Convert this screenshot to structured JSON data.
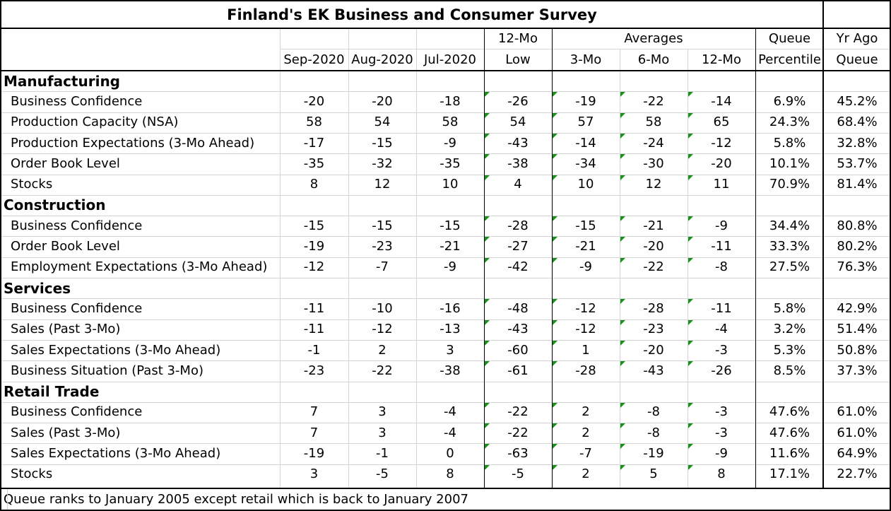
{
  "title": "Finland's EK Business and Consumer Survey",
  "headers": {
    "top": {
      "low": "12-Mo",
      "averages": "Averages",
      "percentile": "Queue",
      "yrago": "Yr Ago"
    },
    "bottom": [
      "Sep-2020",
      "Aug-2020",
      "Jul-2020",
      "Low",
      "3-Mo",
      "6-Mo",
      "12-Mo",
      "Percentile",
      "Queue"
    ]
  },
  "sections": [
    {
      "name": "Manufacturing",
      "rows": [
        {
          "label": "Business Confidence",
          "values": [
            "-20",
            "-20",
            "-18",
            "-26",
            "-19",
            "-22",
            "-14",
            "6.9%",
            "45.2%"
          ]
        },
        {
          "label": "Production Capacity (NSA)",
          "values": [
            "58",
            "54",
            "58",
            "54",
            "57",
            "58",
            "65",
            "24.3%",
            "68.4%"
          ]
        },
        {
          "label": "Production Expectations (3-Mo Ahead)",
          "values": [
            "-17",
            "-15",
            "-9",
            "-43",
            "-14",
            "-24",
            "-12",
            "5.8%",
            "32.8%"
          ]
        },
        {
          "label": "Order Book Level",
          "values": [
            "-35",
            "-32",
            "-35",
            "-38",
            "-34",
            "-30",
            "-20",
            "10.1%",
            "53.7%"
          ]
        },
        {
          "label": "Stocks",
          "values": [
            "8",
            "12",
            "10",
            "4",
            "10",
            "12",
            "11",
            "70.9%",
            "81.4%"
          ]
        }
      ]
    },
    {
      "name": "Construction",
      "rows": [
        {
          "label": "Business Confidence",
          "values": [
            "-15",
            "-15",
            "-15",
            "-28",
            "-15",
            "-21",
            "-9",
            "34.4%",
            "80.8%"
          ]
        },
        {
          "label": "Order Book Level",
          "values": [
            "-19",
            "-23",
            "-21",
            "-27",
            "-21",
            "-20",
            "-11",
            "33.3%",
            "80.2%"
          ]
        },
        {
          "label": "Employment Expectations (3-Mo Ahead)",
          "values": [
            "-12",
            "-7",
            "-9",
            "-42",
            "-9",
            "-22",
            "-8",
            "27.5%",
            "76.3%"
          ]
        }
      ]
    },
    {
      "name": "Services",
      "rows": [
        {
          "label": "Business Confidence",
          "values": [
            "-11",
            "-10",
            "-16",
            "-48",
            "-12",
            "-28",
            "-11",
            "5.8%",
            "42.9%"
          ]
        },
        {
          "label": "Sales (Past 3-Mo)",
          "values": [
            "-11",
            "-12",
            "-13",
            "-43",
            "-12",
            "-23",
            "-4",
            "3.2%",
            "51.4%"
          ]
        },
        {
          "label": "Sales Expectations (3-Mo Ahead)",
          "values": [
            "-1",
            "2",
            "3",
            "-60",
            "1",
            "-20",
            "-3",
            "5.3%",
            "50.8%"
          ]
        },
        {
          "label": "Business Situation (Past 3-Mo)",
          "values": [
            "-23",
            "-22",
            "-38",
            "-61",
            "-28",
            "-43",
            "-26",
            "8.5%",
            "37.3%"
          ]
        }
      ]
    },
    {
      "name": "Retail Trade",
      "rows": [
        {
          "label": "Business Confidence",
          "values": [
            "7",
            "3",
            "-4",
            "-22",
            "2",
            "-8",
            "-3",
            "47.6%",
            "61.0%"
          ]
        },
        {
          "label": "Sales (Past 3-Mo)",
          "values": [
            "7",
            "3",
            "-4",
            "-22",
            "2",
            "-8",
            "-3",
            "47.6%",
            "61.0%"
          ]
        },
        {
          "label": "Sales Expectations (3-Mo Ahead)",
          "values": [
            "-19",
            "-1",
            "0",
            "-63",
            "-7",
            "-19",
            "-9",
            "11.6%",
            "64.9%"
          ]
        },
        {
          "label": "Stocks",
          "values": [
            "3",
            "-5",
            "8",
            "-5",
            "2",
            "5",
            "8",
            "17.1%",
            "22.7%"
          ]
        }
      ]
    }
  ],
  "footnote": "Queue ranks to January 2005 except retail which is back to January 2007"
}
